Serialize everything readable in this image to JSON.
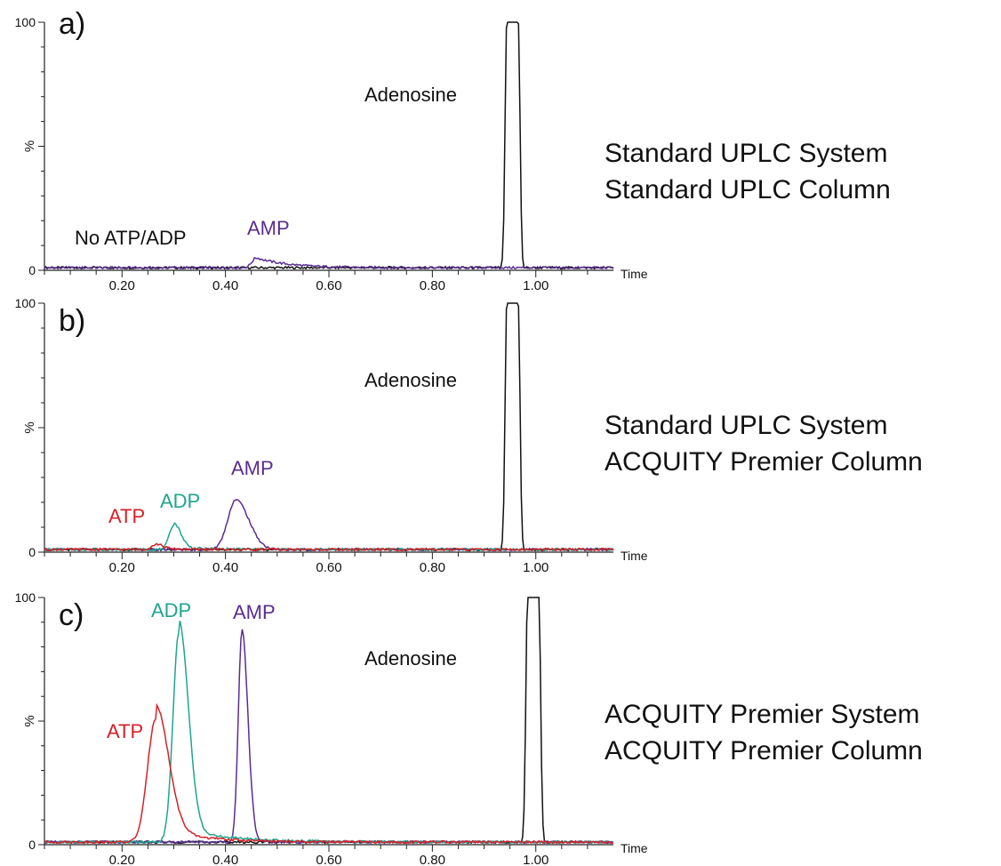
{
  "figure": {
    "panels": [
      {
        "letter": "a)",
        "condition_lines": [
          "Standard UPLC System",
          "Standard UPLC Column"
        ],
        "note": "No ATP/ADP"
      },
      {
        "letter": "b)",
        "condition_lines": [
          "Standard UPLC System",
          "ACQUITY Premier Column"
        ]
      },
      {
        "letter": "c)",
        "condition_lines": [
          "ACQUITY Premier System",
          "ACQUITY Premier Column"
        ]
      }
    ]
  },
  "colors": {
    "ATP": "#d62027",
    "ADP": "#1fa58e",
    "AMP": "#5a2d91",
    "Adenosine": "#111111",
    "axis": "#222222"
  },
  "chart_data": [
    {
      "type": "line",
      "panel": "a)",
      "xlabel": "Time",
      "ylabel": "%",
      "xlim": [
        0.05,
        1.15
      ],
      "ylim": [
        0,
        100
      ],
      "xticks": [
        "0.20",
        "0.40",
        "0.60",
        "0.80",
        "1.00"
      ],
      "yticks": [
        "0",
        "100"
      ],
      "series": [
        {
          "name": "Adenosine",
          "peak": 0.955,
          "width": 0.02,
          "height": 100
        },
        {
          "name": "AMP",
          "peak": 0.46,
          "width": 0.06,
          "height": 4,
          "tail": true
        }
      ],
      "annotations": [
        {
          "text": "Adenosine",
          "series": "Adenosine"
        },
        {
          "text": "AMP",
          "series": "AMP"
        },
        {
          "text": "No ATP/ADP"
        }
      ]
    },
    {
      "type": "line",
      "panel": "b)",
      "xlabel": "Time",
      "ylabel": "%",
      "xlim": [
        0.05,
        1.15
      ],
      "ylim": [
        0,
        100
      ],
      "xticks": [
        "0.20",
        "0.40",
        "0.60",
        "0.80",
        "1.00"
      ],
      "yticks": [
        "0",
        "100"
      ],
      "series": [
        {
          "name": "Adenosine",
          "peak": 0.955,
          "width": 0.02,
          "height": 100
        },
        {
          "name": "AMP",
          "peak": 0.42,
          "width": 0.022,
          "height": 20
        },
        {
          "name": "ADP",
          "peak": 0.3,
          "width": 0.012,
          "height": 10
        },
        {
          "name": "ATP",
          "peak": 0.265,
          "width": 0.012,
          "height": 2
        }
      ],
      "annotations": [
        {
          "text": "Adenosine",
          "series": "Adenosine"
        },
        {
          "text": "AMP",
          "series": "AMP"
        },
        {
          "text": "ADP",
          "series": "ADP"
        },
        {
          "text": "ATP",
          "series": "ATP"
        }
      ]
    },
    {
      "type": "line",
      "panel": "c)",
      "xlabel": "Time",
      "ylabel": "%",
      "xlim": [
        0.05,
        1.15
      ],
      "ylim": [
        0,
        100
      ],
      "xticks": [
        "0.20",
        "0.40",
        "0.60",
        "0.80",
        "1.00"
      ],
      "yticks": [
        "0",
        "100"
      ],
      "series": [
        {
          "name": "Adenosine",
          "peak": 0.995,
          "width": 0.02,
          "height": 100
        },
        {
          "name": "AMP",
          "peak": 0.432,
          "width": 0.01,
          "height": 86
        },
        {
          "name": "ADP",
          "peak": 0.31,
          "width": 0.016,
          "height": 85
        },
        {
          "name": "ATP",
          "peak": 0.265,
          "width": 0.022,
          "height": 50
        }
      ],
      "annotations": [
        {
          "text": "Adenosine",
          "series": "Adenosine"
        },
        {
          "text": "AMP",
          "series": "AMP"
        },
        {
          "text": "ADP",
          "series": "ADP"
        },
        {
          "text": "ATP",
          "series": "ATP"
        }
      ]
    }
  ]
}
